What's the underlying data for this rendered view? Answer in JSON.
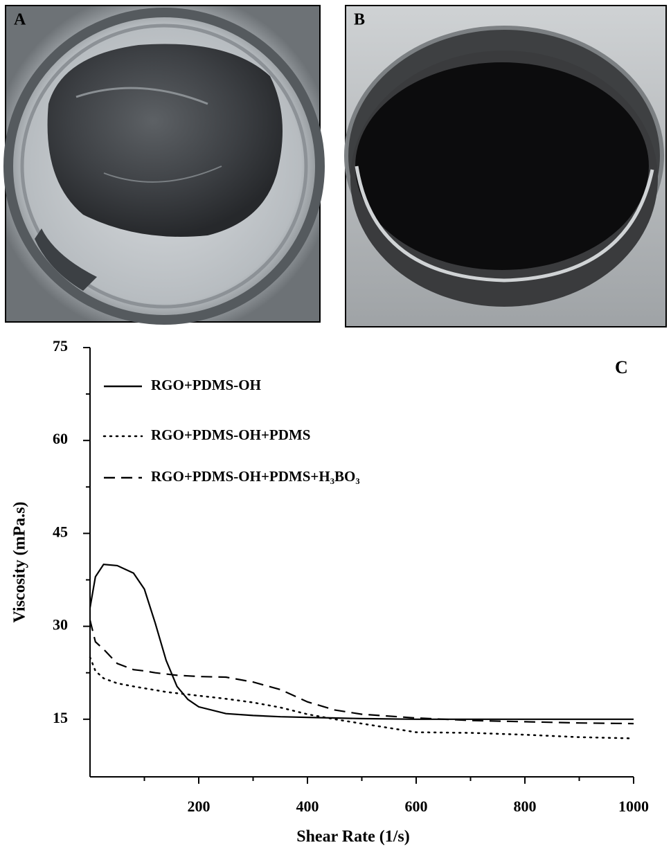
{
  "panels": [
    {
      "label": "A"
    },
    {
      "label": "B"
    }
  ],
  "chart_data": {
    "type": "line",
    "annotations": [
      "C"
    ],
    "xlabel": "Shear Rate (1/s)",
    "ylabel": "Viscosity (mPa.s)",
    "x": [
      0,
      10,
      25,
      50,
      80,
      100,
      120,
      140,
      160,
      180,
      200,
      250,
      300,
      350,
      400,
      450,
      500,
      600,
      700,
      800,
      900,
      1000
    ],
    "series": [
      {
        "name": "RGO+PDMS-OH",
        "color": "#000000",
        "dash": "solid",
        "values": [
          33,
          38,
          40,
          39.8,
          38.6,
          36,
          30.5,
          24.5,
          20.3,
          18.2,
          17,
          15.9,
          15.6,
          15.4,
          15.3,
          15.2,
          15.1,
          15,
          15,
          15,
          15,
          15
        ]
      },
      {
        "name": "RGO+PDMS-OH+PDMS",
        "color": "#000000",
        "dash": "dotted",
        "values": [
          25,
          22.8,
          21.6,
          20.8,
          20.3,
          20,
          19.7,
          19.4,
          19.2,
          19,
          18.8,
          18.3,
          17.7,
          16.9,
          15.8,
          15,
          14.3,
          12.9,
          12.8,
          12.5,
          12.1,
          11.9
        ]
      },
      {
        "name": "RGO+PDMS-OH+PDMS+H₃BO₃",
        "color": "#000000",
        "dash": "dashed",
        "values": [
          31,
          27.5,
          26.3,
          24,
          23,
          22.8,
          22.5,
          22.3,
          22.1,
          22,
          21.9,
          21.8,
          21,
          19.8,
          17.8,
          16.5,
          15.8,
          15.2,
          14.8,
          14.6,
          14.4,
          14.3
        ]
      }
    ],
    "xlim": [
      0,
      1000
    ],
    "xticks": [
      200,
      400,
      600,
      800,
      1000
    ],
    "ylim": [
      5.7,
      75
    ],
    "yticks": [
      15,
      30,
      45,
      60,
      75
    ],
    "grid": false,
    "legend": "upper left"
  }
}
